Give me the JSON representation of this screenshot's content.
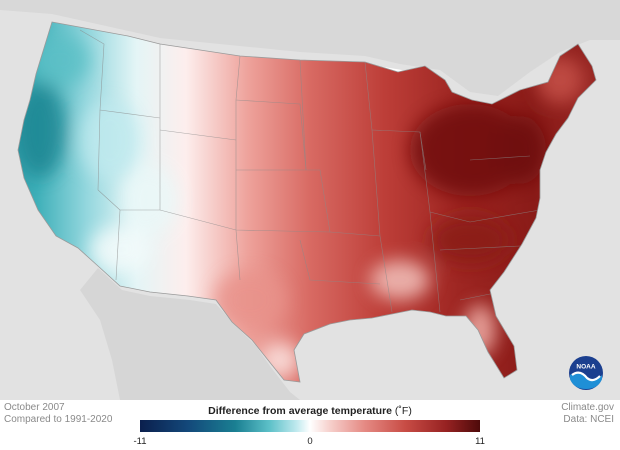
{
  "map": {
    "period": "October 2007",
    "baseline": "Compared to 1991-2020"
  },
  "legend": {
    "title": "Difference from average temperature",
    "unit": "(˚F)",
    "min_label": "-11",
    "mid_label": "0",
    "max_label": "11",
    "min_value": -11,
    "max_value": 11,
    "colors": {
      "cold_extreme": "#0b1f4d",
      "cold": "#1a7f92",
      "neutral": "#ffffff",
      "warm": "#c84c45",
      "warm_extreme": "#4e0a0a"
    }
  },
  "credits": {
    "source": "Climate.gov",
    "data": "Data: NCEI"
  },
  "logo": {
    "text": "NOAA",
    "icon": "noaa-logo-icon"
  }
}
